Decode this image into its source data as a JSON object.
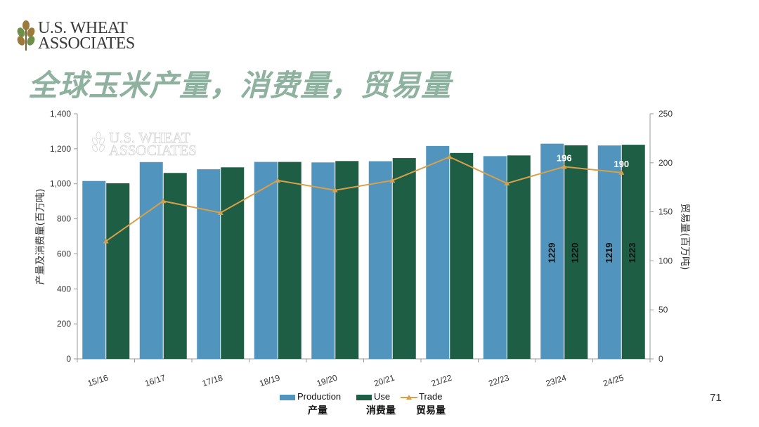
{
  "brand": {
    "line1": "U.S. WHEAT",
    "line2": "ASSOCIATES"
  },
  "slide_title": "全球玉米产量，消费量，贸易量",
  "page_number": "71",
  "colors": {
    "production": "#5194bd",
    "use": "#1e5e45",
    "trade": "#d9a04a",
    "title": "#8fb1a0"
  },
  "chart_data": {
    "type": "bar",
    "categories": [
      "15/16",
      "16/17",
      "17/18",
      "18/19",
      "19/20",
      "20/21",
      "21/22",
      "22/23",
      "23/24",
      "24/25"
    ],
    "series": [
      {
        "name": "Production",
        "name_zh": "产量",
        "type": "bar",
        "axis": "left",
        "values": [
          1016,
          1124,
          1083,
          1125,
          1122,
          1129,
          1216,
          1158,
          1229,
          1219
        ]
      },
      {
        "name": "Use",
        "name_zh": "消费量",
        "type": "bar",
        "axis": "left",
        "values": [
          1003,
          1062,
          1094,
          1125,
          1130,
          1147,
          1176,
          1162,
          1220,
          1223
        ]
      },
      {
        "name": "Trade",
        "name_zh": "贸易量",
        "type": "line",
        "axis": "right",
        "values": [
          120,
          161,
          149,
          182,
          172,
          182,
          206,
          179,
          196,
          190
        ]
      }
    ],
    "bar_labels": [
      {
        "category": "23/24",
        "series": "Production",
        "text": "1229"
      },
      {
        "category": "23/24",
        "series": "Use",
        "text": "1220"
      },
      {
        "category": "24/25",
        "series": "Production",
        "text": "1219"
      },
      {
        "category": "24/25",
        "series": "Use",
        "text": "1223"
      }
    ],
    "line_labels": [
      {
        "category": "23/24",
        "text": "196"
      },
      {
        "category": "24/25",
        "text": "190"
      }
    ],
    "ylabel": "产量及消费量(百万吨)",
    "y2label": "贸易量(百万吨)",
    "ylim": [
      0,
      1400
    ],
    "y2lim": [
      0,
      250
    ],
    "yticks": [
      "0",
      "200",
      "400",
      "600",
      "800",
      "1,000",
      "1,200",
      "1,400"
    ],
    "y2ticks": [
      "0",
      "50",
      "100",
      "150",
      "200",
      "250"
    ],
    "grid": false,
    "legend_position": "bottom"
  }
}
